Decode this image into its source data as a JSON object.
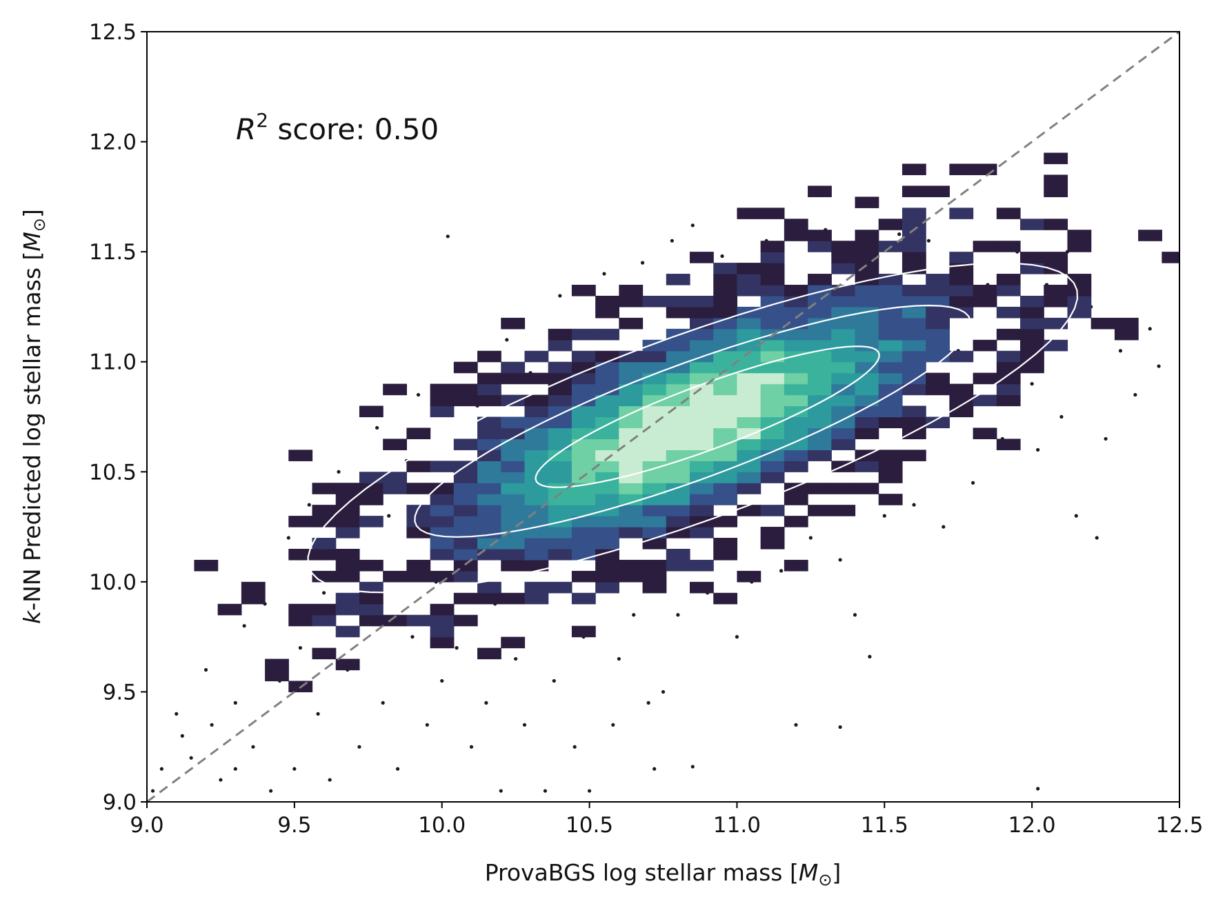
{
  "chart_data": {
    "type": "heatmap",
    "xlabel": "ProvaBGS log stellar mass [M⊙]",
    "xlabel_parts": {
      "text": "ProvaBGS log stellar mass [",
      "symbol": "M",
      "sub": "⊙",
      "close": "]"
    },
    "ylabel": "k-NN Predicted log stellar mass [M⊙]",
    "ylabel_parts": {
      "pre": "k",
      "text": "-NN Predicted log stellar mass [",
      "symbol": "M",
      "sub": "⊙",
      "close": "]"
    },
    "annotation": {
      "text": "R² score: 0.50",
      "symbol": "R",
      "sup": "2",
      "rest": " score: 0.50"
    },
    "xlim": [
      9.0,
      12.5
    ],
    "ylim": [
      9.0,
      12.5
    ],
    "x_ticks": [
      9.0,
      9.5,
      10.0,
      10.5,
      11.0,
      11.5,
      12.0,
      12.5
    ],
    "y_ticks": [
      9.0,
      9.5,
      10.0,
      10.5,
      11.0,
      11.5,
      12.0,
      12.5
    ],
    "x_tick_labels": [
      "9.0",
      "9.5",
      "10.0",
      "10.5",
      "11.0",
      "11.5",
      "12.0",
      "12.5"
    ],
    "y_tick_labels": [
      "9.0",
      "9.5",
      "10.0",
      "10.5",
      "11.0",
      "11.5",
      "12.0",
      "12.5"
    ],
    "grid": false,
    "reference_line": {
      "style": "dashed",
      "color": "#808080",
      "from": [
        9.0,
        9.0
      ],
      "to": [
        12.5,
        12.5
      ]
    },
    "colormap": [
      "#2a1d3e",
      "#333463",
      "#36508a",
      "#2f7a9a",
      "#2d9a9e",
      "#3bb39c",
      "#6fcfa5",
      "#c8ecd2"
    ],
    "contour_color": "#ffffff",
    "scatter_color": "#1a1a1a",
    "density_model": {
      "mean": [
        10.85,
        10.72
      ],
      "sd_x": 0.5,
      "sd_y": 0.36,
      "corr": 0.72
    },
    "contours": [
      {
        "level": "inner",
        "center": [
          10.9,
          10.75
        ],
        "semi_axes": [
          0.65,
          0.14
        ],
        "angle_deg": 27
      },
      {
        "level": "middle",
        "center": [
          10.85,
          10.73
        ],
        "semi_axes": [
          1.05,
          0.25
        ],
        "angle_deg": 27
      },
      {
        "level": "outer",
        "center": [
          10.85,
          10.7
        ],
        "semi_axes": [
          1.45,
          0.4
        ],
        "angle_deg": 27
      }
    ],
    "scatter_points": [
      [
        9.02,
        9.05
      ],
      [
        9.05,
        9.15
      ],
      [
        9.1,
        9.4
      ],
      [
        9.12,
        9.3
      ],
      [
        9.15,
        9.2
      ],
      [
        9.2,
        9.6
      ],
      [
        9.22,
        9.35
      ],
      [
        9.25,
        9.1
      ],
      [
        9.3,
        9.45
      ],
      [
        9.33,
        9.8
      ],
      [
        9.36,
        9.25
      ],
      [
        9.4,
        9.9
      ],
      [
        9.42,
        9.05
      ],
      [
        9.45,
        9.55
      ],
      [
        9.48,
        10.2
      ],
      [
        9.5,
        9.15
      ],
      [
        9.52,
        9.7
      ],
      [
        9.55,
        10.35
      ],
      [
        9.58,
        9.4
      ],
      [
        9.6,
        9.95
      ],
      [
        9.62,
        9.1
      ],
      [
        9.65,
        10.5
      ],
      [
        9.68,
        9.6
      ],
      [
        9.7,
        10.1
      ],
      [
        9.72,
        9.25
      ],
      [
        9.75,
        9.85
      ],
      [
        9.78,
        10.7
      ],
      [
        9.8,
        9.45
      ],
      [
        9.82,
        10.3
      ],
      [
        9.85,
        9.15
      ],
      [
        9.88,
        10.55
      ],
      [
        9.9,
        9.75
      ],
      [
        9.92,
        10.85
      ],
      [
        9.95,
        9.35
      ],
      [
        9.98,
        10.0
      ],
      [
        10.0,
        9.55
      ],
      [
        10.02,
        11.57
      ],
      [
        10.05,
        9.7
      ],
      [
        10.08,
        10.25
      ],
      [
        10.1,
        9.25
      ],
      [
        10.12,
        10.8
      ],
      [
        10.15,
        9.45
      ],
      [
        10.18,
        9.9
      ],
      [
        10.2,
        9.05
      ],
      [
        10.22,
        11.1
      ],
      [
        10.25,
        9.65
      ],
      [
        10.28,
        9.35
      ],
      [
        10.3,
        10.95
      ],
      [
        10.35,
        9.05
      ],
      [
        10.38,
        9.55
      ],
      [
        10.4,
        11.3
      ],
      [
        10.45,
        9.25
      ],
      [
        10.48,
        9.75
      ],
      [
        10.5,
        9.05
      ],
      [
        10.55,
        11.4
      ],
      [
        10.58,
        9.35
      ],
      [
        10.6,
        9.65
      ],
      [
        10.65,
        9.85
      ],
      [
        10.68,
        11.45
      ],
      [
        10.7,
        9.45
      ],
      [
        10.72,
        9.15
      ],
      [
        10.75,
        9.5
      ],
      [
        10.78,
        11.55
      ],
      [
        10.8,
        9.85
      ],
      [
        10.85,
        11.62
      ],
      [
        10.9,
        9.95
      ],
      [
        10.95,
        11.48
      ],
      [
        11.0,
        9.75
      ],
      [
        11.05,
        10.0
      ],
      [
        11.1,
        11.55
      ],
      [
        11.15,
        10.05
      ],
      [
        11.2,
        9.35
      ],
      [
        11.25,
        10.2
      ],
      [
        11.3,
        11.6
      ],
      [
        11.35,
        10.1
      ],
      [
        11.4,
        9.85
      ],
      [
        11.45,
        9.66
      ],
      [
        11.5,
        10.3
      ],
      [
        11.55,
        11.58
      ],
      [
        11.6,
        10.35
      ],
      [
        11.65,
        11.55
      ],
      [
        11.7,
        10.25
      ],
      [
        11.75,
        11.05
      ],
      [
        11.8,
        10.45
      ],
      [
        11.85,
        11.35
      ],
      [
        11.9,
        10.65
      ],
      [
        11.95,
        11.5
      ],
      [
        12.0,
        10.9
      ],
      [
        12.02,
        10.6
      ],
      [
        12.05,
        11.35
      ],
      [
        12.1,
        10.75
      ],
      [
        12.12,
        11.5
      ],
      [
        12.15,
        10.3
      ],
      [
        12.2,
        11.25
      ],
      [
        12.22,
        10.2
      ],
      [
        12.25,
        10.65
      ],
      [
        12.3,
        11.05
      ],
      [
        12.35,
        10.85
      ],
      [
        12.4,
        11.15
      ],
      [
        12.43,
        10.98
      ],
      [
        12.02,
        9.06
      ],
      [
        11.35,
        9.34
      ],
      [
        10.85,
        9.16
      ],
      [
        9.3,
        9.15
      ]
    ]
  }
}
